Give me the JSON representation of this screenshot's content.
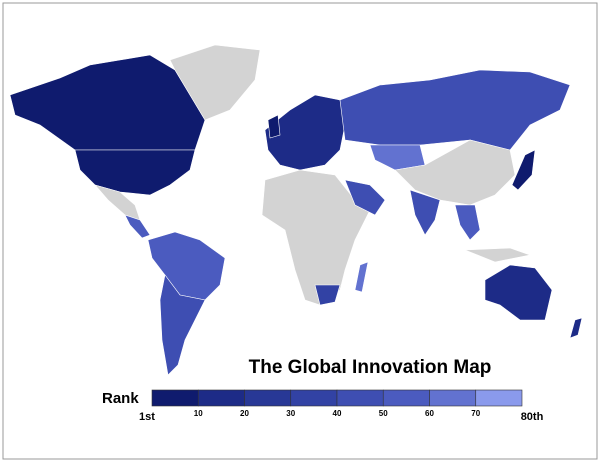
{
  "title": "The Global Innovation Map",
  "legend": {
    "label": "Rank",
    "ticks": [
      "1st",
      "10",
      "20",
      "30",
      "40",
      "50",
      "60",
      "70",
      "80th"
    ],
    "colors": [
      "#0f1b6e",
      "#1d2b87",
      "#283896",
      "#3242a4",
      "#3e4eb2",
      "#4b5bbf",
      "#6272d0",
      "#8a9aec"
    ]
  }
}
